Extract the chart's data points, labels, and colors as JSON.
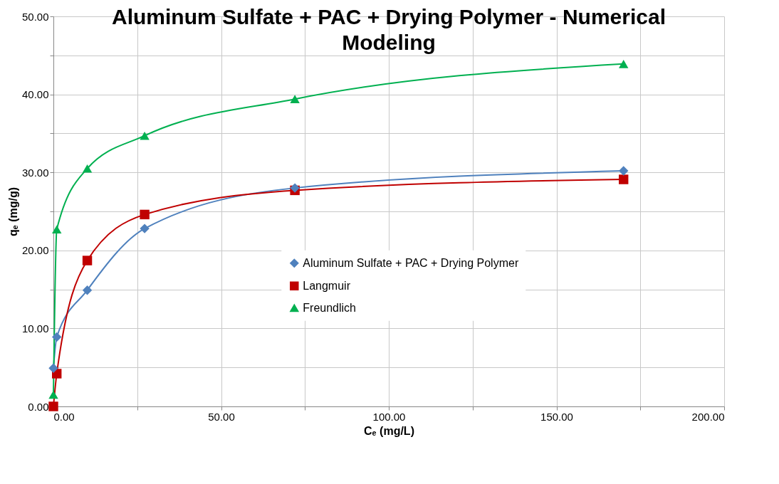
{
  "chart_data": {
    "type": "line",
    "title": "Aluminum Sulfate + PAC + Drying Polymer - Numerical Modeling",
    "xlabel": "Cₑ (mg/L)",
    "ylabel": "qₑ (mg/g)",
    "xlim": [
      0,
      200
    ],
    "xticks": [
      {
        "value": 0,
        "label": "0.00"
      },
      {
        "value": 25,
        "label": null
      },
      {
        "value": 50,
        "label": "50.00"
      },
      {
        "value": 75,
        "label": null
      },
      {
        "value": 100,
        "label": "100.00"
      },
      {
        "value": 125,
        "label": null
      },
      {
        "value": 150,
        "label": "150.00"
      },
      {
        "value": 175,
        "label": null
      },
      {
        "value": 200,
        "label": "200.00"
      }
    ],
    "ylim": [
      0,
      50
    ],
    "yticks": [
      {
        "value": 0,
        "label": "0.00"
      },
      {
        "value": 5,
        "label": null
      },
      {
        "value": 10,
        "label": "10.00"
      },
      {
        "value": 15,
        "label": null
      },
      {
        "value": 20,
        "label": "20.00"
      },
      {
        "value": 25,
        "label": null
      },
      {
        "value": 30,
        "label": "30.00"
      },
      {
        "value": 35,
        "label": null
      },
      {
        "value": 40,
        "label": "40.00"
      },
      {
        "value": 45,
        "label": null
      },
      {
        "value": 50,
        "label": "50.00"
      }
    ],
    "grid": true,
    "legend": "bottom",
    "line_style": "solid",
    "series": [
      {
        "name": "Aluminum Sulfate + PAC + Drying Polymer",
        "color": "#4f81bd",
        "marker": "diamond",
        "x": [
          0,
          1,
          10.1,
          27.2,
          72,
          170
        ],
        "values": [
          4.9,
          8.9,
          14.9,
          22.8,
          28.0,
          30.2
        ]
      },
      {
        "name": "Langmuir",
        "color": "#c00000",
        "marker": "square",
        "x": [
          0,
          1,
          10.1,
          27.2,
          72,
          170
        ],
        "values": [
          0,
          4.2,
          18.7,
          24.6,
          27.7,
          29.1
        ]
      },
      {
        "name": "Freundlich",
        "color": "#00b050",
        "marker": "triangle",
        "x": [
          0,
          1,
          10.1,
          27.2,
          72,
          170
        ],
        "values": [
          1.5,
          22.7,
          30.5,
          34.7,
          39.4,
          43.9
        ]
      }
    ]
  }
}
